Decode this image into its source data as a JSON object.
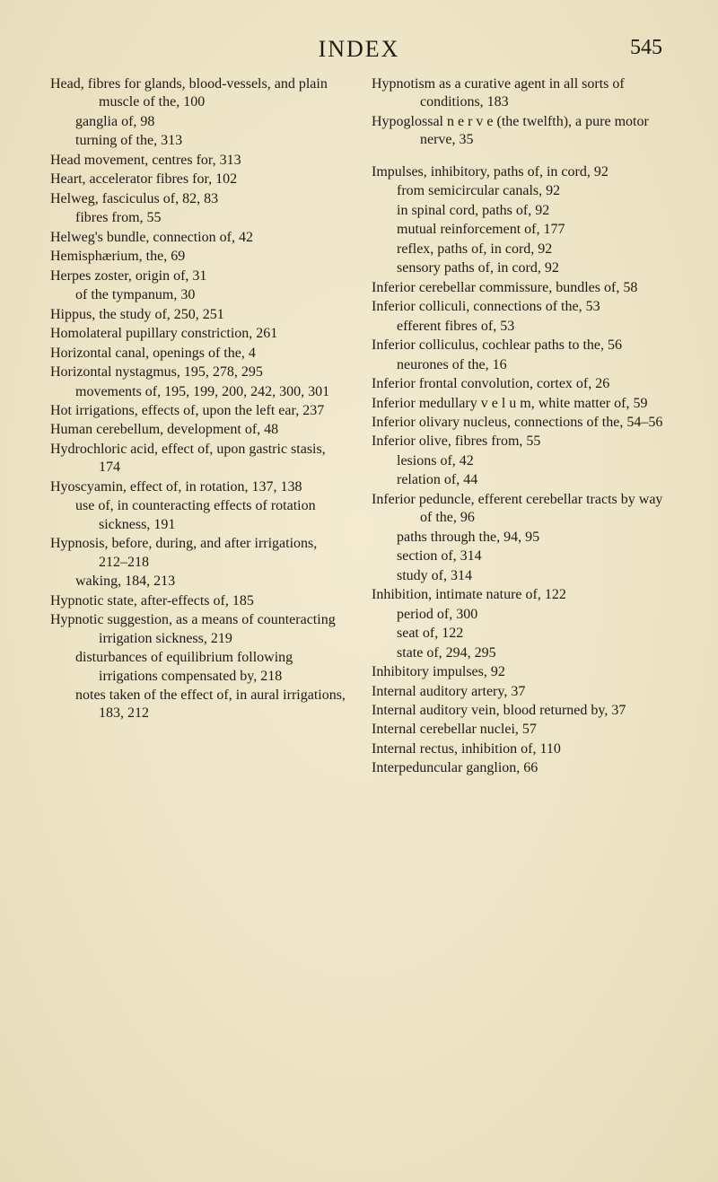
{
  "header": {
    "title": "INDEX",
    "page_number": "545"
  },
  "left": [
    {
      "t": "main",
      "v": "Head, fibres for glands, blood-vessels, and plain muscle of the, 100"
    },
    {
      "t": "sub",
      "v": "ganglia of, 98"
    },
    {
      "t": "sub",
      "v": "turning of the, 313"
    },
    {
      "t": "main",
      "v": "Head movement, centres for, 313"
    },
    {
      "t": "main",
      "v": "Heart, accelerator fibres for, 102"
    },
    {
      "t": "main",
      "v": "Helweg, fasciculus of, 82, 83"
    },
    {
      "t": "sub",
      "v": "fibres from, 55"
    },
    {
      "t": "main",
      "v": "Helweg's bundle, connection of, 42"
    },
    {
      "t": "main",
      "v": "Hemisphærium, the, 69"
    },
    {
      "t": "main",
      "v": "Herpes zoster, origin of, 31"
    },
    {
      "t": "sub",
      "v": "of the tympanum, 30"
    },
    {
      "t": "main",
      "v": "Hippus, the study of, 250, 251"
    },
    {
      "t": "main",
      "v": "Homolateral pupillary constriction, 261"
    },
    {
      "t": "main",
      "v": "Horizontal canal, openings of the, 4"
    },
    {
      "t": "main",
      "v": "Horizontal nystagmus, 195, 278, 295"
    },
    {
      "t": "sub",
      "v": "movements of, 195, 199, 200, 242, 300, 301"
    },
    {
      "t": "main",
      "v": "Hot irrigations, effects of, upon the left ear, 237"
    },
    {
      "t": "main",
      "v": "Human cerebellum, development of, 48"
    },
    {
      "t": "main",
      "v": "Hydrochloric acid, effect of, upon gastric stasis, 174"
    },
    {
      "t": "main",
      "v": "Hyoscyamin, effect of, in rotation, 137, 138"
    },
    {
      "t": "sub",
      "v": "use of, in counteracting effects of rotation sickness, 191"
    },
    {
      "t": "main",
      "v": "Hypnosis, before, during, and after irrigations, 212–218"
    },
    {
      "t": "sub",
      "v": "waking, 184, 213"
    },
    {
      "t": "main",
      "v": "Hypnotic state, after-effects of, 185"
    },
    {
      "t": "main",
      "v": "Hypnotic suggestion, as a means of counteracting irrigation sickness, 219"
    },
    {
      "t": "sub",
      "v": "disturbances of equilibrium following irrigations compensated by, 218"
    },
    {
      "t": "sub",
      "v": "notes taken of the effect of, in aural irrigations, 183, 212"
    }
  ],
  "right": [
    {
      "t": "main",
      "v": "Hypnotism as a curative agent in all sorts of conditions, 183"
    },
    {
      "t": "main",
      "v": "Hypoglossal n e r v e (the twelfth), a pure motor nerve, 35"
    },
    {
      "t": "spacer",
      "v": ""
    },
    {
      "t": "main",
      "v": "Impulses, inhibitory, paths of, in cord, 92"
    },
    {
      "t": "sub",
      "v": "from semicircular canals, 92"
    },
    {
      "t": "sub",
      "v": "in spinal cord, paths of, 92"
    },
    {
      "t": "sub",
      "v": "mutual reinforcement of, 177"
    },
    {
      "t": "sub",
      "v": "reflex, paths of, in cord, 92"
    },
    {
      "t": "sub",
      "v": "sensory paths of, in cord, 92"
    },
    {
      "t": "main",
      "v": "Inferior cerebellar commissure, bundles of, 58"
    },
    {
      "t": "main",
      "v": "Inferior colliculi, connections of the, 53"
    },
    {
      "t": "sub",
      "v": "efferent fibres of, 53"
    },
    {
      "t": "main",
      "v": "Inferior colliculus, cochlear paths to the, 56"
    },
    {
      "t": "sub",
      "v": "neurones of the, 16"
    },
    {
      "t": "main",
      "v": "Inferior frontal convolution, cortex of, 26"
    },
    {
      "t": "main",
      "v": "Inferior medullary v e l u m, white matter of, 59"
    },
    {
      "t": "main",
      "v": "Inferior olivary nucleus, connections of the, 54–56"
    },
    {
      "t": "main",
      "v": "Inferior olive, fibres from, 55"
    },
    {
      "t": "sub",
      "v": "lesions of, 42"
    },
    {
      "t": "sub",
      "v": "relation of, 44"
    },
    {
      "t": "main",
      "v": "Inferior peduncle, efferent cerebellar tracts by way of the, 96"
    },
    {
      "t": "sub",
      "v": "paths through the, 94, 95"
    },
    {
      "t": "sub",
      "v": "section of, 314"
    },
    {
      "t": "sub",
      "v": "study of, 314"
    },
    {
      "t": "main",
      "v": "Inhibition, intimate nature of, 122"
    },
    {
      "t": "sub",
      "v": "period of, 300"
    },
    {
      "t": "sub",
      "v": "seat of, 122"
    },
    {
      "t": "sub",
      "v": "state of, 294, 295"
    },
    {
      "t": "main",
      "v": "Inhibitory impulses, 92"
    },
    {
      "t": "main",
      "v": "Internal auditory artery, 37"
    },
    {
      "t": "main",
      "v": "Internal auditory vein, blood returned by, 37"
    },
    {
      "t": "main",
      "v": "Internal cerebellar nuclei, 57"
    },
    {
      "t": "main",
      "v": "Internal rectus, inhibition of, 110"
    },
    {
      "t": "main",
      "v": "Interpeduncular ganglion, 66"
    }
  ]
}
